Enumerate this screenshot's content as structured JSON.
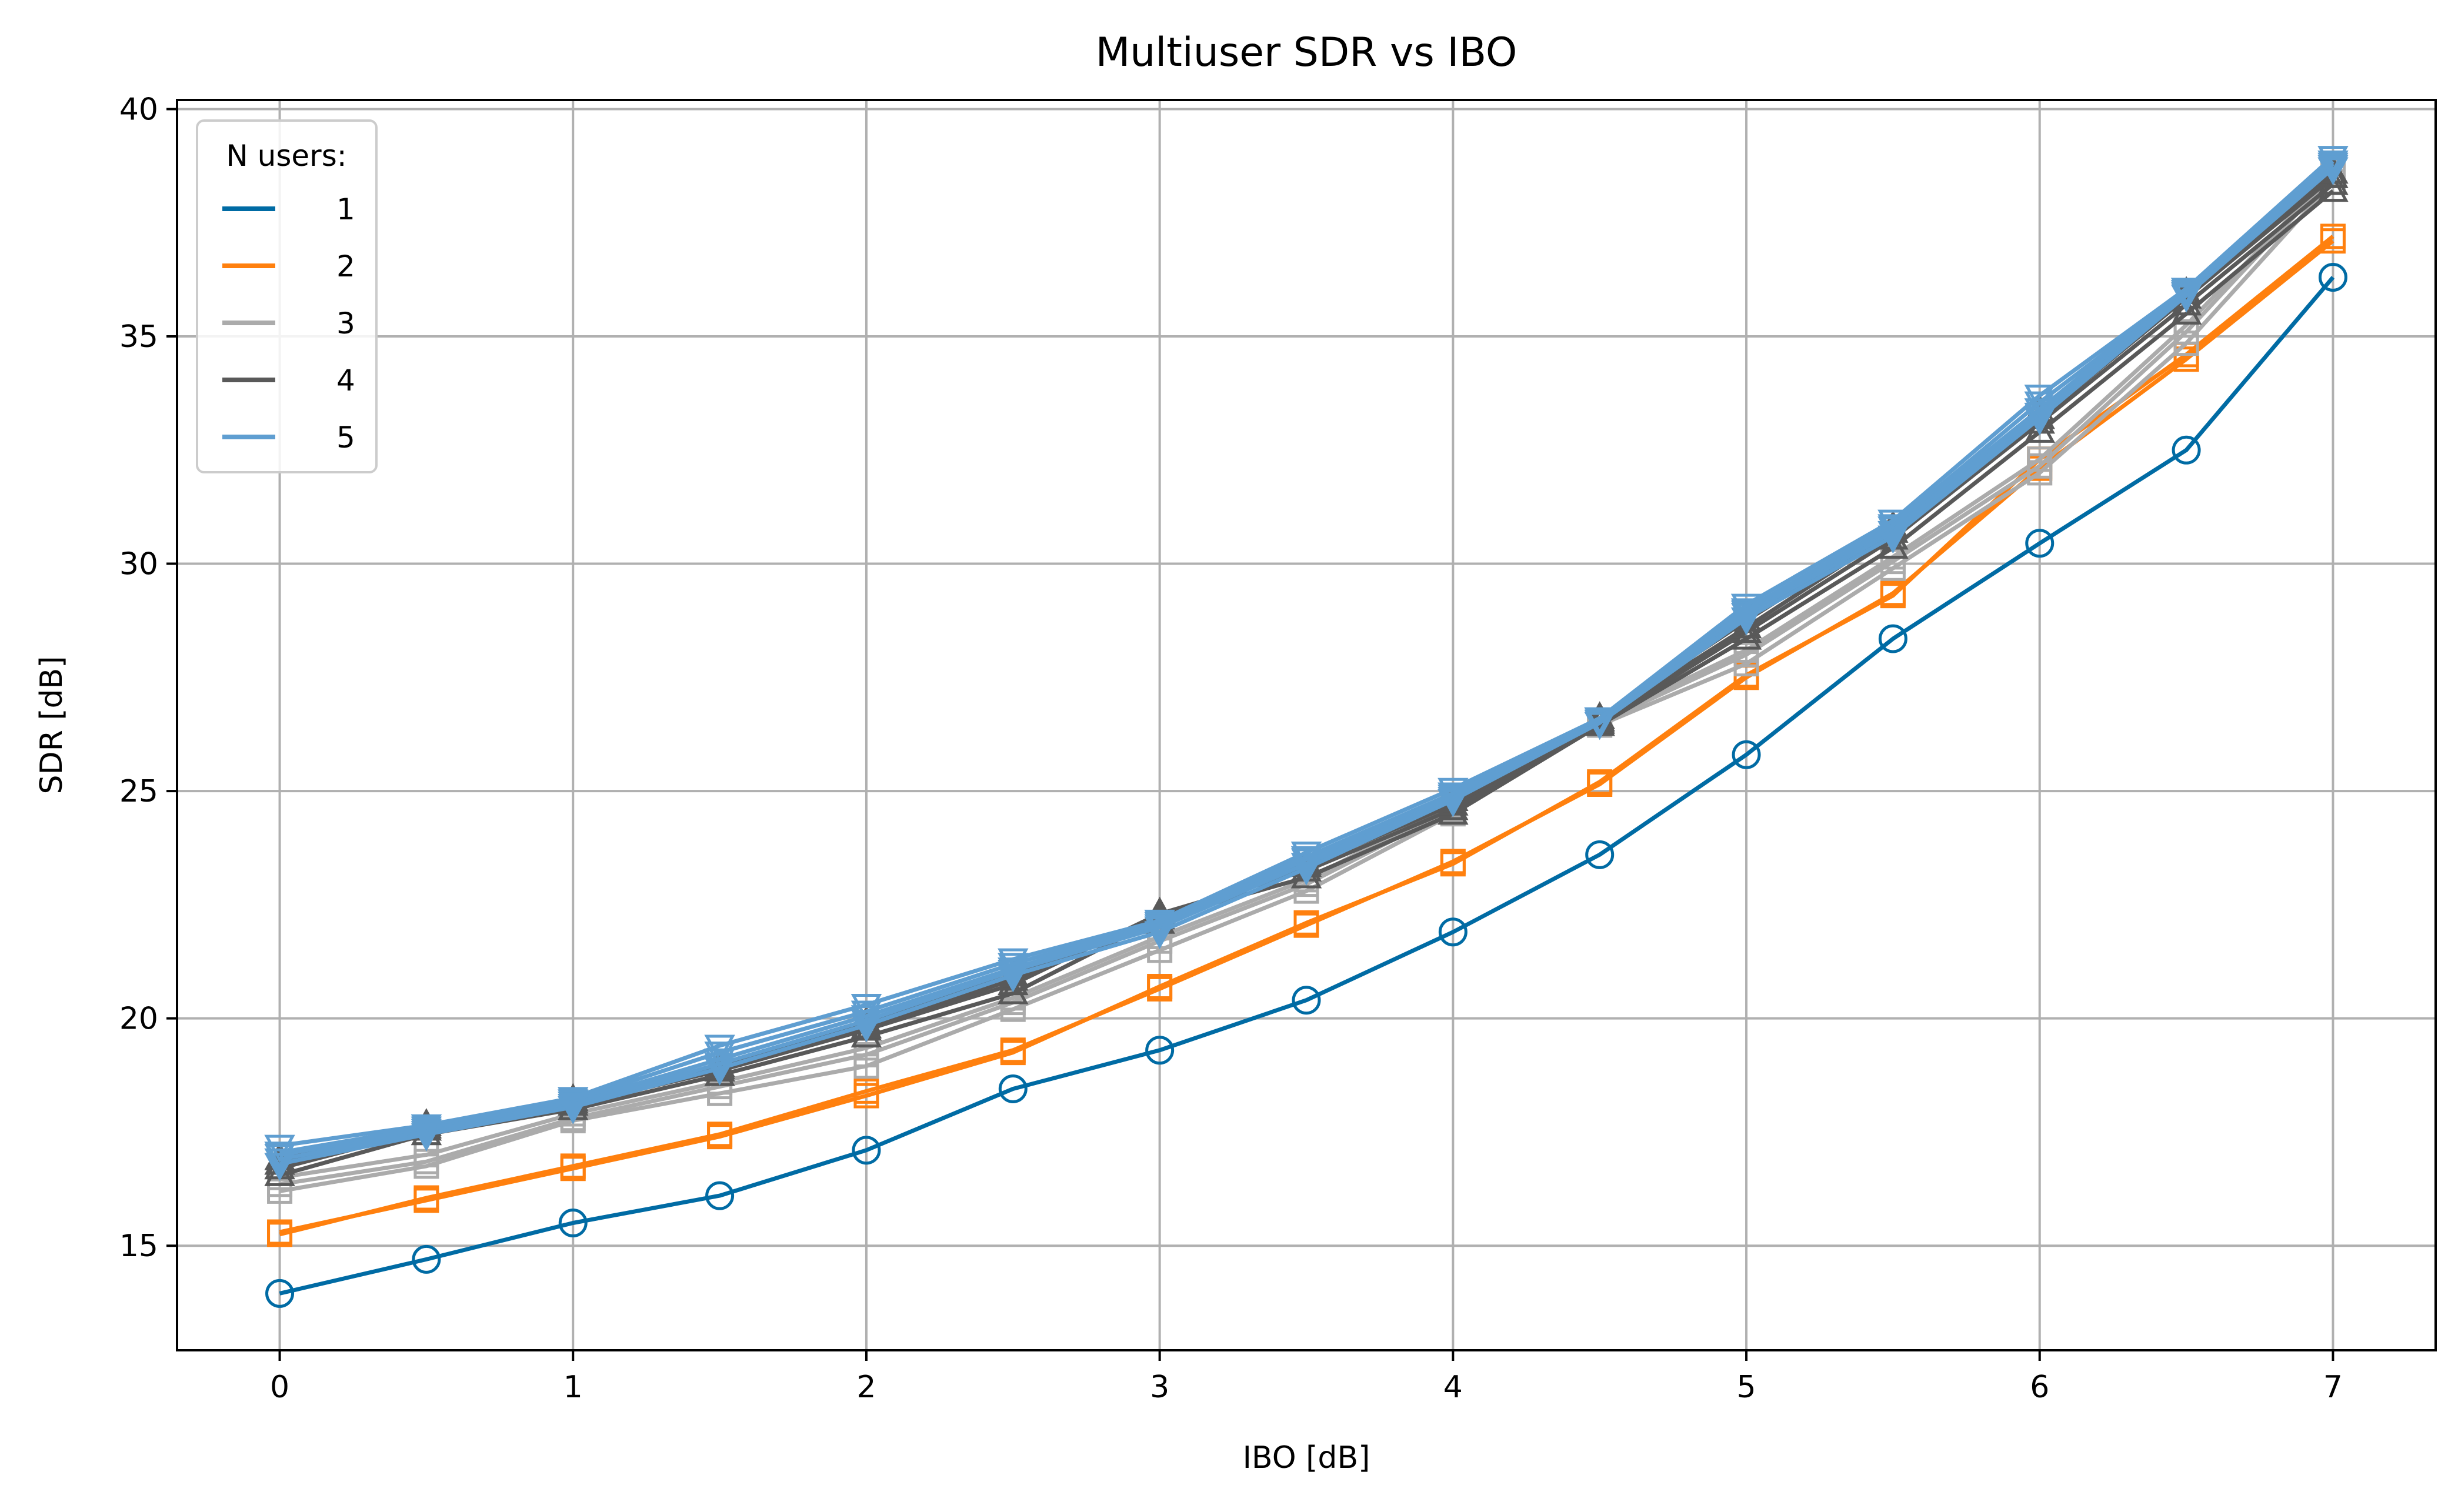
{
  "chart_data": {
    "type": "line",
    "title": "Multiuser SDR vs IBO",
    "xlabel": "IBO [dB]",
    "ylabel": "SDR [dB]",
    "xlim": [
      -0.35,
      7.35
    ],
    "ylim": [
      12.7,
      40.2
    ],
    "xticks": [
      0,
      1,
      2,
      3,
      4,
      5,
      6,
      7
    ],
    "yticks": [
      15,
      20,
      25,
      30,
      35,
      40
    ],
    "grid": true,
    "legend": {
      "title": "N users:",
      "placement": "top-left"
    },
    "x": [
      0,
      0.5,
      1,
      1.5,
      2,
      2.5,
      3,
      3.5,
      4,
      4.5,
      5,
      5.5,
      6,
      6.5,
      7
    ],
    "series": [
      {
        "name": "1",
        "color": "#006BA4",
        "marker": "circle",
        "curves": [
          [
            13.95,
            14.7,
            15.5,
            16.1,
            17.1,
            18.45,
            19.3,
            20.4,
            21.9,
            23.6,
            25.8,
            28.35,
            30.45,
            32.5,
            36.3
          ]
        ]
      },
      {
        "name": "2",
        "color": "#FF800E",
        "marker": "square",
        "curves": [
          [
            15.25,
            16.05,
            16.75,
            17.45,
            18.4,
            19.3,
            20.65,
            22.05,
            23.45,
            25.15,
            27.5,
            29.35,
            32.1,
            34.5,
            37.1
          ],
          [
            15.3,
            16.0,
            16.7,
            17.4,
            18.3,
            19.25,
            20.7,
            22.1,
            23.4,
            25.2,
            27.55,
            29.3,
            32.3,
            34.6,
            37.2
          ]
        ]
      },
      {
        "name": "3",
        "color": "#ABABAB",
        "marker": "square",
        "curves": [
          [
            16.2,
            16.75,
            17.75,
            18.35,
            18.95,
            20.2,
            21.5,
            22.8,
            24.5,
            26.45,
            27.8,
            29.9,
            32.0,
            34.85,
            38.4
          ],
          [
            16.35,
            16.85,
            17.8,
            18.5,
            19.2,
            20.35,
            21.7,
            22.95,
            24.6,
            26.5,
            28.0,
            30.05,
            32.15,
            35.1,
            38.55
          ],
          [
            16.5,
            17.0,
            17.9,
            18.6,
            19.35,
            20.45,
            21.8,
            23.05,
            24.7,
            26.55,
            28.1,
            30.15,
            32.3,
            35.25,
            38.6
          ]
        ]
      },
      {
        "name": "4",
        "color": "#595959",
        "marker": "triangle-up",
        "curves": [
          [
            16.55,
            17.45,
            18.0,
            18.75,
            19.6,
            20.55,
            22.2,
            23.1,
            24.5,
            26.45,
            28.35,
            30.35,
            32.9,
            35.5,
            38.2
          ],
          [
            16.7,
            17.55,
            18.1,
            18.85,
            19.75,
            20.75,
            22.3,
            23.25,
            24.6,
            26.5,
            28.5,
            30.55,
            33.1,
            35.7,
            38.35
          ],
          [
            16.8,
            17.6,
            18.15,
            18.9,
            19.8,
            20.85,
            22.2,
            23.35,
            24.7,
            26.55,
            28.6,
            30.7,
            33.2,
            35.85,
            38.5
          ],
          [
            16.9,
            17.65,
            18.2,
            18.95,
            19.9,
            20.95,
            22.1,
            23.4,
            24.8,
            26.6,
            28.75,
            30.8,
            33.35,
            35.95,
            38.6
          ]
        ]
      },
      {
        "name": "5",
        "color": "#5F9ED1",
        "marker": "triangle-down",
        "curves": [
          [
            16.8,
            17.45,
            18.05,
            18.9,
            19.85,
            20.95,
            21.9,
            23.3,
            24.8,
            26.5,
            28.8,
            30.6,
            33.2,
            35.9,
            38.7
          ],
          [
            16.9,
            17.5,
            18.1,
            19.0,
            19.95,
            21.05,
            22.0,
            23.4,
            24.85,
            26.55,
            28.9,
            30.7,
            33.3,
            35.95,
            38.75
          ],
          [
            17.0,
            17.55,
            18.15,
            19.1,
            20.05,
            21.1,
            22.05,
            23.5,
            24.9,
            26.6,
            28.95,
            30.8,
            33.4,
            36.0,
            38.8
          ],
          [
            17.05,
            17.6,
            18.2,
            19.25,
            20.15,
            21.2,
            22.1,
            23.55,
            24.95,
            26.6,
            29.0,
            30.85,
            33.55,
            36.0,
            38.85
          ],
          [
            17.2,
            17.65,
            18.25,
            19.4,
            20.3,
            21.3,
            22.15,
            23.65,
            25.05,
            26.6,
            29.1,
            30.95,
            33.7,
            36.05,
            38.95
          ]
        ]
      }
    ]
  }
}
